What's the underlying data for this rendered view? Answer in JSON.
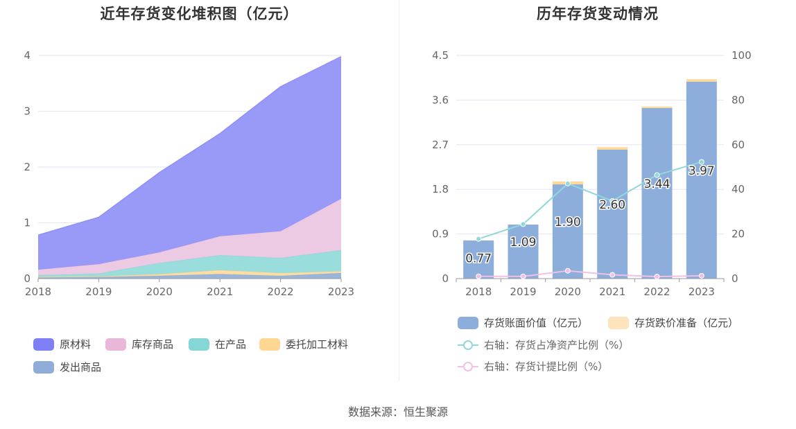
{
  "chart_data": [
    {
      "type": "area",
      "stacked": true,
      "title": "近年存货变化堆积图（亿元）",
      "categories": [
        "2018",
        "2019",
        "2020",
        "2021",
        "2022",
        "2023"
      ],
      "y_ticks": [
        "0",
        "1",
        "2",
        "3",
        "4"
      ],
      "ylim": [
        0,
        4
      ],
      "series": [
        {
          "name": "发出商品",
          "color": "#8fadd8",
          "values": [
            0.02,
            0.03,
            0.05,
            0.08,
            0.05,
            0.1
          ]
        },
        {
          "name": "委托加工材料",
          "color": "#fdd99a",
          "values": [
            0.01,
            0.01,
            0.03,
            0.07,
            0.05,
            0.03
          ]
        },
        {
          "name": "在产品",
          "color": "#8fd9d9",
          "values": [
            0.03,
            0.05,
            0.2,
            0.27,
            0.27,
            0.38
          ]
        },
        {
          "name": "库存商品",
          "color": "#ebc4e0",
          "values": [
            0.1,
            0.17,
            0.19,
            0.34,
            0.48,
            0.92
          ]
        },
        {
          "name": "原材料",
          "color": "#8e8ff7",
          "values": [
            0.62,
            0.84,
            1.43,
            1.84,
            2.59,
            2.55
          ]
        }
      ],
      "legend": [
        {
          "name": "原材料",
          "color": "#7e7ff5"
        },
        {
          "name": "库存商品",
          "color": "#e9b7da"
        },
        {
          "name": "在产品",
          "color": "#85d6d6"
        },
        {
          "name": "委托加工材料",
          "color": "#fed893"
        },
        {
          "name": "发出商品",
          "color": "#8fadd8"
        }
      ]
    },
    {
      "type": "bar",
      "title": "历年存货变动情况",
      "categories": [
        "2018",
        "2019",
        "2020",
        "2021",
        "2022",
        "2023"
      ],
      "y_ticks_left": [
        "0",
        "0.9",
        "1.8",
        "2.7",
        "3.6",
        "4.5"
      ],
      "y_ticks_right": [
        "0",
        "20",
        "40",
        "60",
        "80",
        "100"
      ],
      "ylim_left": [
        0,
        4.5
      ],
      "ylim_right": [
        0,
        100
      ],
      "series": [
        {
          "name": "存货账面价值（亿元）",
          "kind": "bar",
          "color": "#8daedb",
          "values": [
            0.77,
            1.09,
            1.9,
            2.6,
            3.44,
            3.97
          ],
          "labels": [
            "0.77",
            "1.09",
            "1.90",
            "2.60",
            "3.44",
            "3.97"
          ]
        },
        {
          "name": "存货跌价准备（亿元）",
          "kind": "bar-stack",
          "color": "#fde4bd",
          "values": [
            0.0,
            0.0,
            0.06,
            0.05,
            0.03,
            0.05
          ]
        },
        {
          "name": "右轴：存货占净资产比例（%）",
          "kind": "line",
          "axis": "right",
          "color": "#8fd8dc",
          "values": [
            17.8,
            24.4,
            42.6,
            34.8,
            46.4,
            52.3
          ]
        },
        {
          "name": "右轴：存货计提比例（%）",
          "kind": "line",
          "axis": "right",
          "color": "#f0c0e6",
          "values": [
            1.0,
            1.0,
            3.5,
            1.7,
            0.9,
            1.3
          ]
        }
      ]
    }
  ],
  "source": "数据来源：恒生聚源"
}
